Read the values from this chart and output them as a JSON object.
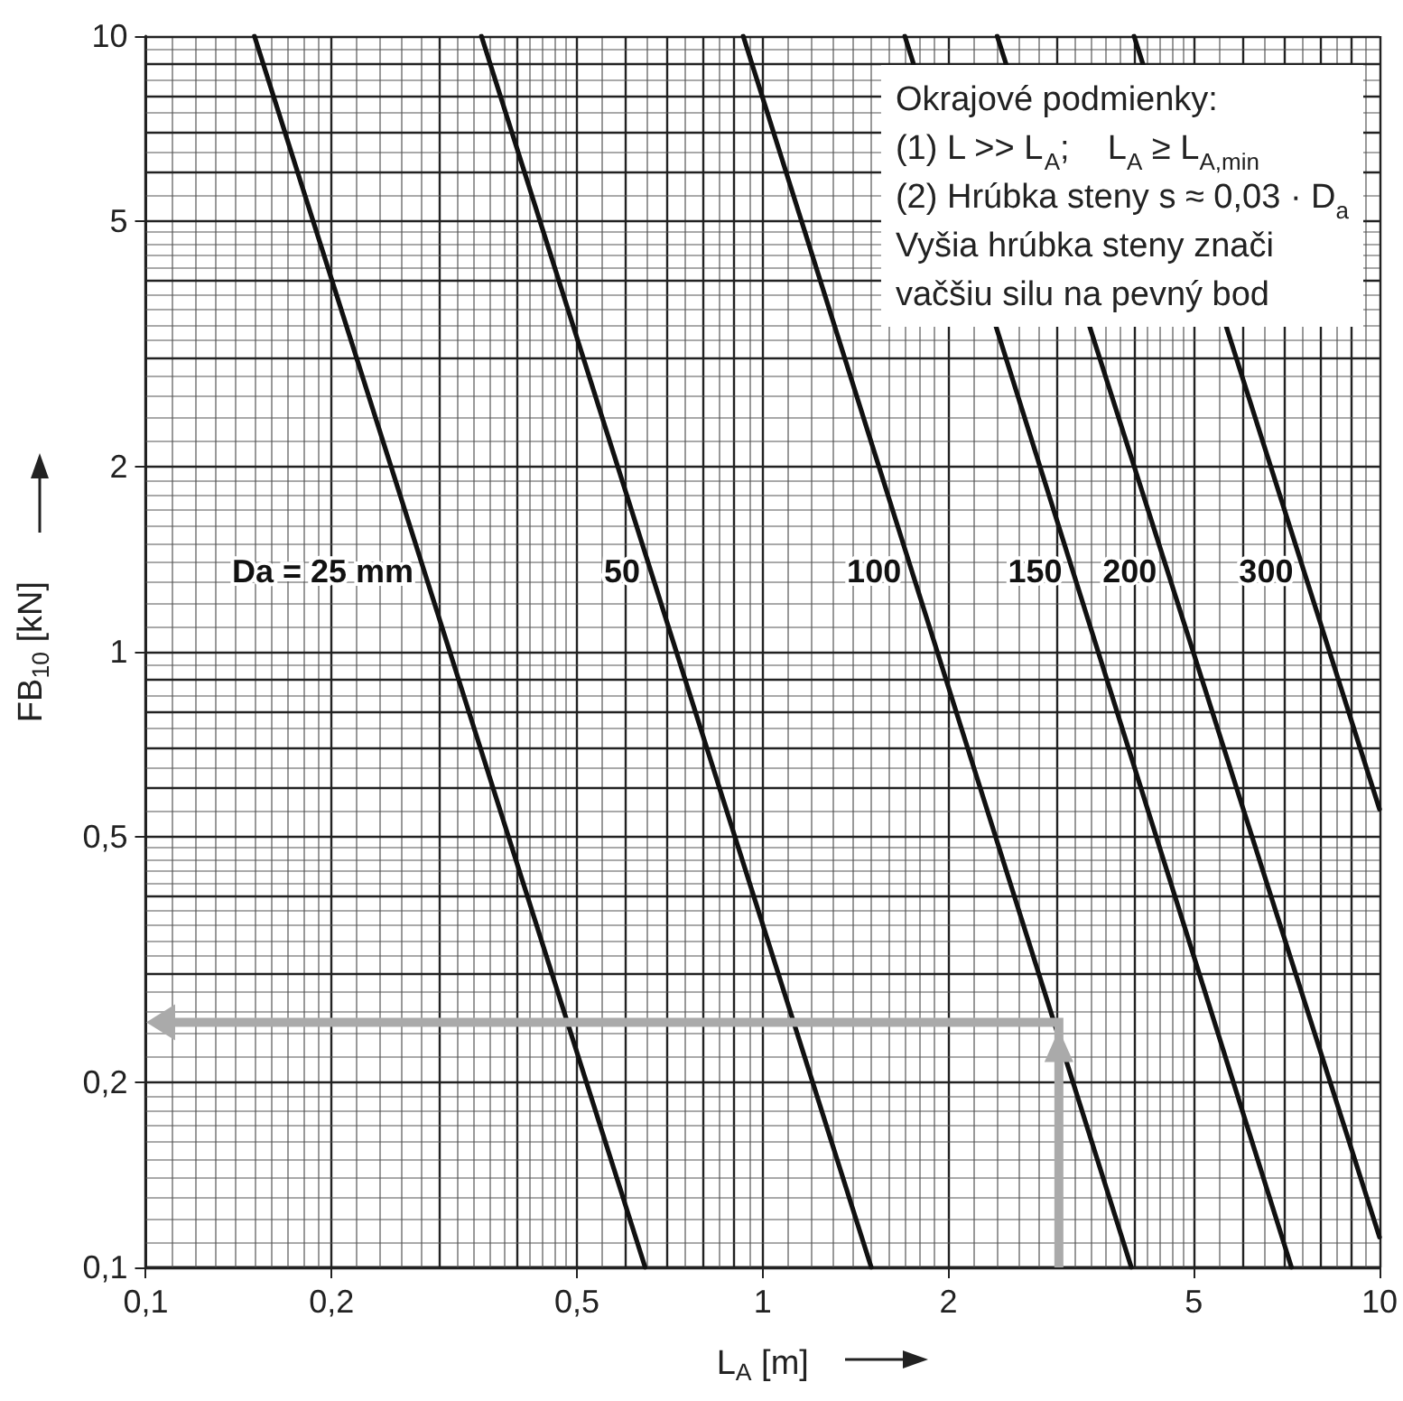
{
  "chart_data": {
    "type": "line",
    "xlabel": "L$_{A}$ [m]",
    "ylabel": "FB$_{10}$ [kN]",
    "log": "xy",
    "grid": true,
    "legend": false,
    "line_style": "solid",
    "marker": "none",
    "xlim": [
      0.1,
      10
    ],
    "ylim": [
      0.1,
      10
    ],
    "xticks": [
      {
        "value": 0.1,
        "label": "0,1"
      },
      {
        "value": 0.2,
        "label": "0,2"
      },
      {
        "value": 0.5,
        "label": "0,5"
      },
      1,
      2,
      5,
      10
    ],
    "yticks": [
      {
        "value": 0.1,
        "label": "0,1"
      },
      {
        "value": 0.2,
        "label": "0,2"
      },
      {
        "value": 0.5,
        "label": "0,5"
      },
      1,
      2,
      5,
      10
    ],
    "series": [
      {
        "name": "Da = 25 mm",
        "color": "#111111",
        "x": [
          0.15,
          0.645
        ],
        "values": [
          10,
          0.1
        ]
      },
      {
        "name": "50",
        "color": "#111111",
        "x": [
          0.35,
          1.5
        ],
        "values": [
          10,
          0.1
        ]
      },
      {
        "name": "100",
        "color": "#111111",
        "x": [
          0.93,
          3.96
        ],
        "values": [
          10,
          0.1
        ]
      },
      {
        "name": "150",
        "color": "#111111",
        "x": [
          1.7,
          7.2
        ],
        "values": [
          10,
          0.1
        ]
      },
      {
        "name": "200",
        "color": "#111111",
        "x": [
          2.4,
          10
        ],
        "values": [
          10,
          0.112
        ]
      },
      {
        "name": "300",
        "color": "#111111",
        "x": [
          4,
          10
        ],
        "values": [
          10,
          0.555
        ]
      }
    ],
    "annotations": [
      "Okrajové podmienky:",
      "(1) L >> L$_{A}$;    L$_{A}$ ≥ L$_{A,min}$",
      "(2) Hrúbka steny s ≈ 0,03 · D$_{a}$",
      "Vyšia hrúbka steny znači",
      "vačšiu silu na pevný bod"
    ]
  }
}
